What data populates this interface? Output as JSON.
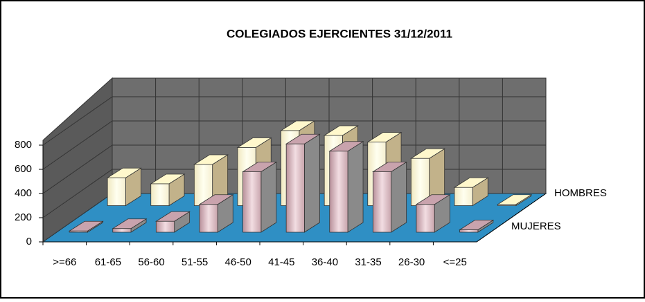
{
  "chart_data": {
    "type": "bar3d",
    "title": "COLEGIADOS EJERCIENTES 31/12/2011",
    "categories": [
      ">=66",
      "61-65",
      "56-60",
      "51-55",
      "46-50",
      "41-45",
      "36-40",
      "31-35",
      "26-30",
      "<=25"
    ],
    "series": [
      {
        "name": "MUJERES",
        "color": "#e6c4cc",
        "values": [
          10,
          30,
          90,
          230,
          500,
          730,
          670,
          500,
          230,
          20
        ]
      },
      {
        "name": "HOMBRES",
        "color": "#fffbdc",
        "values": [
          230,
          180,
          340,
          480,
          620,
          580,
          525,
          390,
          150,
          10
        ]
      }
    ],
    "ylim": [
      0,
      800
    ],
    "yticks": [
      0,
      200,
      400,
      600,
      800
    ],
    "grid": true
  }
}
